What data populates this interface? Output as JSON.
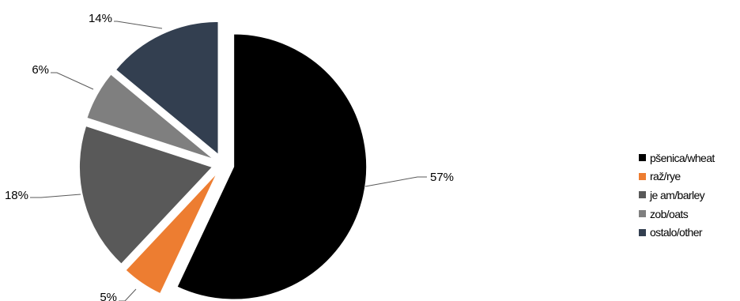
{
  "chart_data": {
    "type": "pie",
    "categories": [
      "pšenica/wheat",
      "raž/rye",
      "je am/barley",
      "zob/oats",
      "ostalo/other"
    ],
    "values": [
      57,
      5,
      18,
      6,
      14
    ],
    "labels": [
      "57%",
      "5%",
      "18%",
      "6%",
      "14%"
    ],
    "colors": [
      "#000000",
      "#ED7D31",
      "#595959",
      "#7F7F7F",
      "#333F50"
    ],
    "exploded": true,
    "start_angle_deg": 0,
    "legend_position": "right"
  }
}
